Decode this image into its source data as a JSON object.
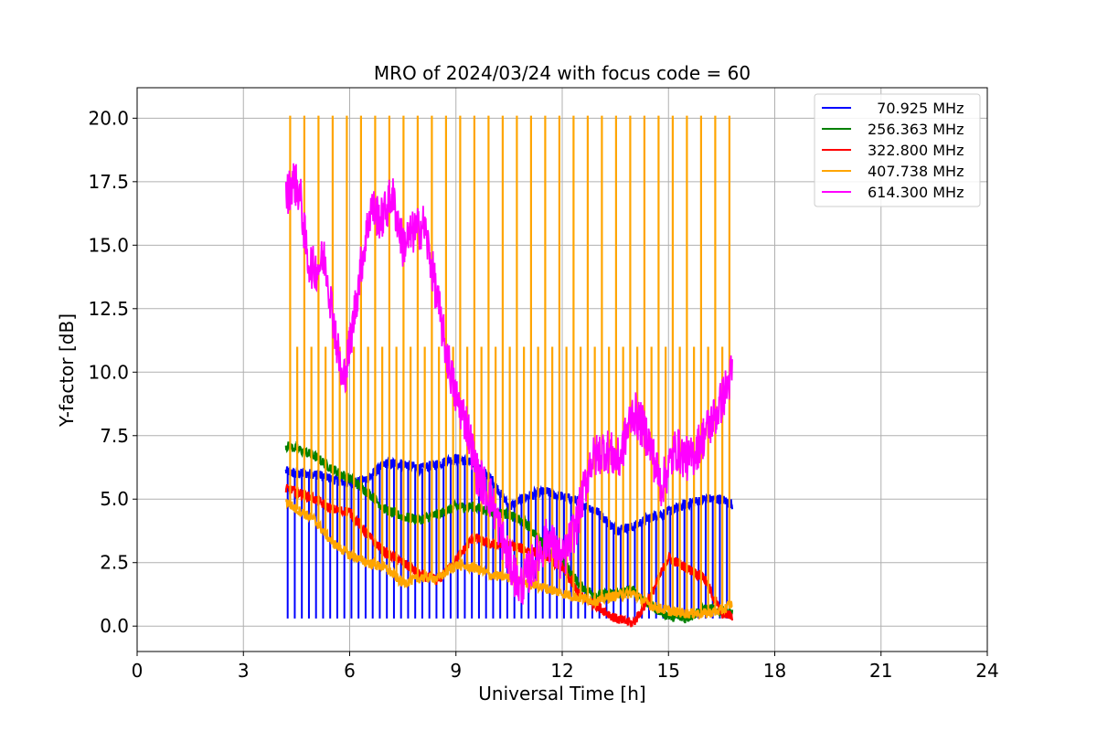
{
  "chart_data": {
    "type": "line",
    "title": "MRO of 2024/03/24 with focus code = 60",
    "xlabel": "Universal Time [h]",
    "ylabel": "Y-factor [dB]",
    "xlim": [
      0,
      24
    ],
    "ylim": [
      -1.0,
      21.2
    ],
    "xticks": [
      0,
      3,
      6,
      9,
      12,
      15,
      18,
      21,
      24
    ],
    "xtick_labels": [
      "0",
      "3",
      "6",
      "9",
      "12",
      "15",
      "18",
      "21",
      "24"
    ],
    "yticks": [
      0,
      2.5,
      5,
      7.5,
      10,
      12.5,
      15,
      17.5,
      20
    ],
    "ytick_labels": [
      "0.0",
      "2.5",
      "5.0",
      "7.5",
      "10.0",
      "12.5",
      "15.0",
      "17.5",
      "20.0"
    ],
    "grid": true,
    "legend_position": "top-right",
    "series": [
      {
        "name": "  70.925 MHz",
        "color": "#0000ff",
        "x": [
          4.2,
          4.5,
          5.0,
          5.5,
          6.0,
          6.5,
          7.0,
          7.5,
          8.0,
          8.5,
          9.0,
          9.5,
          10.0,
          10.5,
          11.0,
          11.5,
          12.0,
          12.5,
          13.0,
          13.5,
          14.0,
          14.5,
          15.0,
          15.5,
          16.0,
          16.5,
          16.8
        ],
        "y": [
          6.1,
          6.0,
          6.0,
          5.8,
          5.6,
          5.8,
          6.4,
          6.4,
          6.2,
          6.4,
          6.6,
          6.4,
          5.8,
          4.7,
          5.1,
          5.3,
          5.1,
          4.9,
          4.5,
          3.8,
          3.9,
          4.3,
          4.5,
          4.8,
          5.0,
          5.0,
          4.8
        ],
        "spikes_to": 0.3
      },
      {
        "name": "256.363 MHz",
        "color": "#008000",
        "x": [
          4.2,
          4.5,
          5.0,
          5.5,
          6.0,
          6.5,
          7.0,
          7.5,
          8.0,
          8.5,
          9.0,
          9.5,
          10.0,
          10.5,
          11.0,
          11.5,
          12.0,
          12.5,
          13.0,
          13.5,
          14.0,
          14.5,
          15.0,
          15.5,
          16.0,
          16.5,
          16.8
        ],
        "y": [
          7.1,
          7.0,
          6.7,
          6.2,
          5.8,
          5.3,
          4.6,
          4.3,
          4.2,
          4.4,
          4.7,
          4.7,
          4.5,
          4.4,
          4.0,
          3.2,
          2.6,
          1.6,
          1.2,
          1.3,
          1.4,
          0.8,
          0.4,
          0.3,
          0.7,
          0.6,
          0.5
        ]
      },
      {
        "name": "322.800 MHz",
        "color": "#ff0000",
        "x": [
          4.2,
          4.5,
          5.0,
          5.5,
          6.0,
          6.5,
          7.0,
          7.5,
          8.0,
          8.5,
          9.0,
          9.5,
          10.0,
          10.5,
          11.0,
          11.5,
          12.0,
          12.5,
          13.0,
          13.5,
          14.0,
          14.5,
          15.0,
          15.5,
          16.0,
          16.5,
          16.8
        ],
        "y": [
          5.4,
          5.3,
          5.0,
          4.6,
          4.5,
          3.6,
          2.9,
          2.5,
          2.0,
          1.8,
          2.6,
          3.5,
          3.2,
          3.2,
          3.0,
          2.8,
          2.3,
          1.2,
          0.8,
          0.3,
          0.1,
          1.2,
          2.7,
          2.3,
          1.9,
          0.5,
          0.4
        ]
      },
      {
        "name": "407.738 MHz",
        "color": "#ffa500",
        "x": [
          4.2,
          4.5,
          5.0,
          5.5,
          6.0,
          6.5,
          7.0,
          7.5,
          8.0,
          8.5,
          9.0,
          9.5,
          10.0,
          10.5,
          11.0,
          11.5,
          12.0,
          12.5,
          13.0,
          13.5,
          14.0,
          14.5,
          15.0,
          15.5,
          16.0,
          16.5,
          16.8
        ],
        "y": [
          4.9,
          4.6,
          4.2,
          3.3,
          2.8,
          2.5,
          2.3,
          1.7,
          1.9,
          1.9,
          2.4,
          2.3,
          2.0,
          1.9,
          1.7,
          1.5,
          1.3,
          1.1,
          1.0,
          1.2,
          1.3,
          0.8,
          0.6,
          0.5,
          0.5,
          0.6,
          0.9
        ],
        "spike_high": 20.1,
        "spike_mid": 11.0
      },
      {
        "name": "614.300 MHz",
        "color": "#ff00ff",
        "x": [
          4.2,
          4.4,
          4.6,
          4.8,
          5.0,
          5.3,
          5.6,
          5.8,
          6.0,
          6.3,
          6.6,
          6.9,
          7.2,
          7.5,
          7.8,
          8.1,
          8.4,
          8.7,
          9.0,
          9.3,
          9.6,
          10.0,
          10.4,
          10.8,
          11.2,
          11.6,
          12.0,
          12.4,
          12.8,
          13.2,
          13.6,
          14.0,
          14.4,
          14.8,
          15.2,
          15.6,
          16.0,
          16.4,
          16.8
        ],
        "y": [
          16.8,
          17.6,
          17.0,
          14.5,
          14.0,
          14.5,
          11.5,
          9.5,
          11.0,
          14.0,
          16.5,
          16.0,
          17.0,
          15.0,
          15.5,
          15.8,
          13.5,
          11.0,
          9.0,
          8.0,
          6.0,
          5.0,
          3.0,
          1.5,
          2.5,
          3.5,
          2.5,
          4.0,
          6.5,
          7.0,
          6.5,
          8.5,
          7.5,
          5.5,
          7.0,
          6.5,
          7.5,
          8.5,
          10.0
        ]
      }
    ]
  }
}
